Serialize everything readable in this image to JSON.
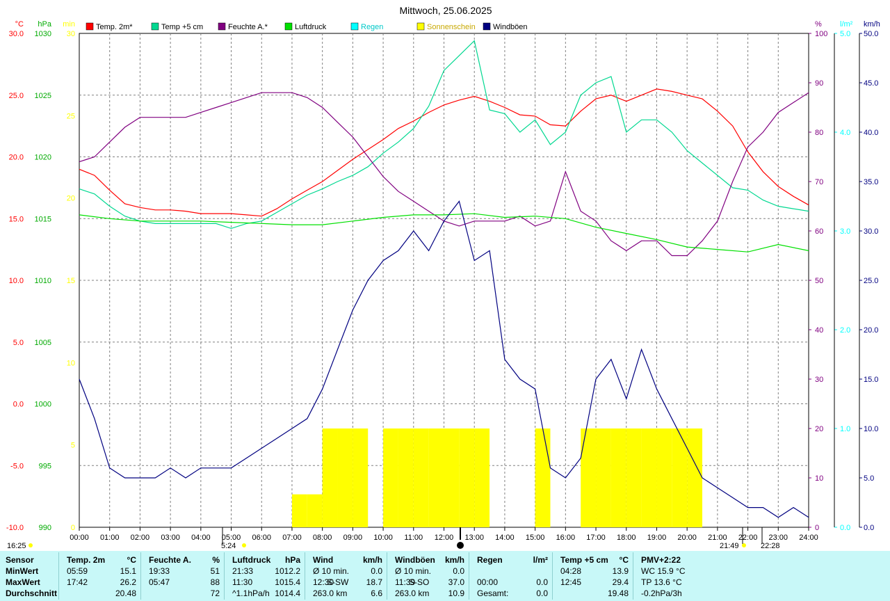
{
  "chart_data": {
    "type": "line",
    "title": "Mittwoch, 25.06.2025",
    "x_ticks": [
      "00:00",
      "01:00",
      "02:00",
      "03:00",
      "04:00",
      "05:00",
      "06:00",
      "07:00",
      "08:00",
      "09:00",
      "10:00",
      "11:00",
      "12:00",
      "13:00",
      "14:00",
      "15:00",
      "16:00",
      "17:00",
      "18:00",
      "19:00",
      "20:00",
      "21:00",
      "22:00",
      "23:00",
      "24:00"
    ],
    "axes": {
      "temp": {
        "unit": "°C",
        "min": -10,
        "max": 30,
        "ticks": [
          "30.0",
          "25.0",
          "20.0",
          "15.0",
          "10.0",
          "5.0",
          "0.0",
          "-5.0",
          "-10.0"
        ],
        "color": "#ff0000"
      },
      "pressure": {
        "unit": "hPa",
        "min": 990,
        "max": 1030,
        "ticks": [
          "1030",
          "1025",
          "1020",
          "1015",
          "1010",
          "1005",
          "1000",
          "995",
          "990"
        ],
        "color": "#00aa00"
      },
      "sun": {
        "unit": "min",
        "min": 0,
        "max": 30,
        "ticks": [
          "30",
          "25",
          "20",
          "15",
          "10",
          "5",
          "0"
        ],
        "color": "#ffff00"
      },
      "humidity": {
        "unit": "%",
        "min": 0,
        "max": 100,
        "ticks": [
          "100",
          "90",
          "80",
          "70",
          "60",
          "50",
          "40",
          "30",
          "20",
          "10",
          "0"
        ],
        "color": "#800080"
      },
      "rain": {
        "unit": "l/m²",
        "min": 0,
        "max": 5,
        "ticks": [
          "5.0",
          "4.0",
          "3.0",
          "2.0",
          "1.0",
          "0.0"
        ],
        "color": "#00ffff"
      },
      "wind": {
        "unit": "km/h",
        "min": 0,
        "max": 50,
        "ticks": [
          "50.0",
          "45.0",
          "40.0",
          "35.0",
          "30.0",
          "25.0",
          "20.0",
          "15.0",
          "10.0",
          "5.0",
          "0.0"
        ],
        "color": "#000080"
      }
    },
    "legend": [
      {
        "name": "Temp. 2m*",
        "color": "#ff0000"
      },
      {
        "name": "Temp +5 cm",
        "color": "#00d890"
      },
      {
        "name": "Feuchte A.*",
        "color": "#800080"
      },
      {
        "name": "Luftdruck",
        "color": "#00e000"
      },
      {
        "name": "Regen",
        "color": "#00ffff"
      },
      {
        "name": "Sonnenschein",
        "color": "#ffff00"
      },
      {
        "name": "Windböen",
        "color": "#000080"
      }
    ],
    "series": [
      {
        "name": "Temp. 2m*",
        "axis": "temp",
        "color": "#ff0000",
        "x": [
          0,
          0.5,
          1,
          1.5,
          2,
          2.5,
          3,
          3.5,
          4,
          4.5,
          5,
          5.5,
          6,
          6.5,
          7,
          7.5,
          8,
          8.5,
          9,
          9.5,
          10,
          10.5,
          11,
          11.5,
          12,
          12.5,
          13,
          13.5,
          14,
          14.5,
          15,
          15.5,
          16,
          16.5,
          17,
          17.5,
          18,
          18.5,
          19,
          19.5,
          20,
          20.5,
          21,
          21.5,
          22,
          22.5,
          23,
          23.5,
          24
        ],
        "y": [
          19.0,
          18.5,
          17.3,
          16.2,
          15.9,
          15.7,
          15.7,
          15.6,
          15.4,
          15.4,
          15.4,
          15.3,
          15.2,
          15.8,
          16.6,
          17.3,
          18.0,
          18.9,
          19.8,
          20.6,
          21.4,
          22.3,
          22.9,
          23.6,
          24.2,
          24.6,
          24.9,
          24.5,
          24.0,
          23.4,
          23.3,
          22.6,
          22.5,
          23.7,
          24.7,
          25.0,
          24.5,
          25.0,
          25.5,
          25.3,
          25.0,
          24.7,
          23.7,
          22.5,
          20.4,
          18.8,
          17.6,
          16.8,
          16.1
        ]
      },
      {
        "name": "Temp +5 cm",
        "axis": "temp",
        "color": "#00d890",
        "x": [
          0,
          0.5,
          1,
          1.5,
          2,
          2.5,
          3,
          3.5,
          4,
          4.5,
          5,
          5.5,
          6,
          6.5,
          7,
          7.5,
          8,
          8.5,
          9,
          9.5,
          10,
          10.5,
          11,
          11.5,
          12,
          12.5,
          13,
          13.5,
          14,
          14.5,
          15,
          15.5,
          16,
          16.5,
          17,
          17.5,
          18,
          18.5,
          19,
          19.5,
          20,
          20.5,
          21,
          21.5,
          22,
          22.5,
          23,
          23.5,
          24
        ],
        "y": [
          17.4,
          17.0,
          16.0,
          15.2,
          14.8,
          14.6,
          14.6,
          14.6,
          14.6,
          14.6,
          14.2,
          14.6,
          14.8,
          15.5,
          16.2,
          16.9,
          17.4,
          18.0,
          18.5,
          19.2,
          20.3,
          21.2,
          22.3,
          24.1,
          27.0,
          28.2,
          29.4,
          23.8,
          23.5,
          22.0,
          23.0,
          21.0,
          22.0,
          25.0,
          26.0,
          26.5,
          22.0,
          23.0,
          23.0,
          22.0,
          20.5,
          19.5,
          18.5,
          17.5,
          17.3,
          16.5,
          16.0,
          15.8,
          15.6
        ]
      },
      {
        "name": "Feuchte A.*",
        "axis": "humidity",
        "color": "#800080",
        "x": [
          0,
          0.5,
          1,
          1.5,
          2,
          2.5,
          3,
          3.5,
          4,
          4.5,
          5,
          5.5,
          6,
          6.5,
          7,
          7.5,
          8,
          8.5,
          9,
          9.5,
          10,
          10.5,
          11,
          11.5,
          12,
          12.5,
          13,
          13.5,
          14,
          14.5,
          15,
          15.5,
          16,
          16.5,
          17,
          17.5,
          18,
          18.5,
          19,
          19.5,
          20,
          20.5,
          21,
          21.5,
          22,
          22.5,
          23,
          23.5,
          24
        ],
        "y": [
          74,
          75,
          78,
          81,
          83,
          83,
          83,
          83,
          84,
          85,
          86,
          87,
          88,
          88,
          88,
          87,
          85,
          82,
          79,
          75,
          71,
          68,
          66,
          64,
          62,
          61,
          62,
          62,
          62,
          63,
          61,
          62,
          72,
          64,
          62,
          58,
          56,
          58,
          58,
          55,
          55,
          58,
          62,
          70,
          77,
          80,
          84,
          86,
          88
        ]
      },
      {
        "name": "Luftdruck",
        "axis": "pressure",
        "color": "#00e000",
        "x": [
          0,
          1,
          2,
          3,
          4,
          5,
          6,
          7,
          8,
          9,
          10,
          11,
          12,
          13,
          14,
          15,
          16,
          17,
          18,
          19,
          20,
          21,
          22,
          23,
          24
        ],
        "y": [
          1015.3,
          1015.0,
          1014.8,
          1014.8,
          1014.8,
          1014.7,
          1014.6,
          1014.5,
          1014.5,
          1014.8,
          1015.1,
          1015.3,
          1015.3,
          1015.4,
          1015.1,
          1015.2,
          1015.0,
          1014.3,
          1013.8,
          1013.3,
          1012.7,
          1012.5,
          1012.3,
          1012.9,
          1012.4
        ]
      },
      {
        "name": "Windböen",
        "axis": "wind",
        "color": "#000080",
        "x": [
          0,
          0.5,
          1,
          1.5,
          2,
          2.5,
          3,
          3.5,
          4,
          4.5,
          5,
          5.5,
          6,
          6.5,
          7,
          7.5,
          8,
          8.5,
          9,
          9.5,
          10,
          10.5,
          11,
          11.5,
          12,
          12.5,
          13,
          13.5,
          14,
          14.5,
          15,
          15.5,
          16,
          16.5,
          17,
          17.5,
          18,
          18.5,
          19,
          19.5,
          20,
          20.5,
          21,
          21.5,
          22,
          22.5,
          23,
          23.5,
          24
        ],
        "y": [
          15,
          11,
          6,
          5,
          5,
          5,
          6,
          5,
          6,
          6,
          6,
          7,
          8,
          9,
          10,
          11,
          14,
          18,
          22,
          25,
          27,
          28,
          30,
          28,
          31,
          33,
          27,
          28,
          17,
          15,
          14,
          6,
          5,
          7,
          15,
          17,
          13,
          18,
          14,
          11,
          8,
          5,
          4,
          3,
          2,
          2,
          1,
          2,
          1
        ]
      }
    ],
    "sunshine": {
      "axis": "sun",
      "color": "#ffff00",
      "x": [
        7.0,
        7.5,
        8.0,
        8.5,
        9.0,
        9.5,
        10.0,
        10.5,
        11.0,
        11.5,
        12.0,
        12.5,
        13.0,
        14.5,
        15.0,
        16.0,
        16.5,
        17.0,
        17.5,
        18.0,
        18.5,
        19.0,
        19.5,
        20.0
      ],
      "y": [
        2,
        2,
        6,
        6,
        6,
        0,
        6,
        6,
        6,
        6,
        6,
        6,
        6,
        0,
        6,
        0,
        6,
        6,
        6,
        6,
        6,
        6,
        6,
        6
      ]
    },
    "time_markers": {
      "sunrise": "5:24",
      "sunset": "21:49",
      "moonrise": "22:28",
      "moonset": "16:25"
    }
  },
  "stats": {
    "columns": [
      {
        "header": "Sensor",
        "unit": "",
        "rows": [
          [
            "MinWert",
            "",
            ""
          ],
          [
            "MaxWert",
            "",
            ""
          ],
          [
            "Durchschnitt",
            "",
            ""
          ]
        ]
      },
      {
        "header": "Temp. 2m",
        "unit": "°C",
        "rows": [
          [
            "05:59",
            "",
            "15.1"
          ],
          [
            "17:42",
            "",
            "26.2"
          ],
          [
            "",
            "",
            "20.48"
          ]
        ]
      },
      {
        "header": "Feuchte A.",
        "unit": "%",
        "rows": [
          [
            "19:33",
            "",
            "51"
          ],
          [
            "05:47",
            "",
            "88"
          ],
          [
            "",
            "",
            "72"
          ]
        ]
      },
      {
        "header": "Luftdruck",
        "unit": "hPa",
        "rows": [
          [
            "21:33",
            "",
            "1012.2"
          ],
          [
            "11:30",
            "",
            "1015.4"
          ],
          [
            "^1.1hPa/h",
            "",
            "1014.4"
          ]
        ]
      },
      {
        "header": "Wind",
        "unit": "km/h",
        "rows": [
          [
            "Ø 10 min.",
            "",
            "0.0"
          ],
          [
            "12:30",
            "S-SW",
            "18.7"
          ],
          [
            "263.0 km",
            "",
            "6.6"
          ]
        ]
      },
      {
        "header": "Windböen",
        "unit": "km/h",
        "rows": [
          [
            "Ø 10 min.",
            "",
            "0.0"
          ],
          [
            "11:39",
            "S-SO",
            "37.0"
          ],
          [
            "263.0 km",
            "",
            "10.9"
          ]
        ]
      },
      {
        "header": "Regen",
        "unit": "l/m²",
        "rows": [
          [
            "",
            "",
            ""
          ],
          [
            "00:00",
            "",
            "0.0"
          ],
          [
            "Gesamt:",
            "",
            "0.0"
          ]
        ]
      },
      {
        "header": "Temp +5 cm",
        "unit": "°C",
        "rows": [
          [
            "04:28",
            "",
            "13.9"
          ],
          [
            "12:45",
            "",
            "29.4"
          ],
          [
            "",
            "",
            "19.48"
          ]
        ]
      },
      {
        "header": "PMV+2:22",
        "unit": "",
        "rows": [
          [
            "WC 15.9 °C",
            "",
            ""
          ],
          [
            "TP 13.6 °C",
            "",
            ""
          ],
          [
            "-0.2hPa/3h",
            "",
            ""
          ]
        ]
      }
    ]
  }
}
